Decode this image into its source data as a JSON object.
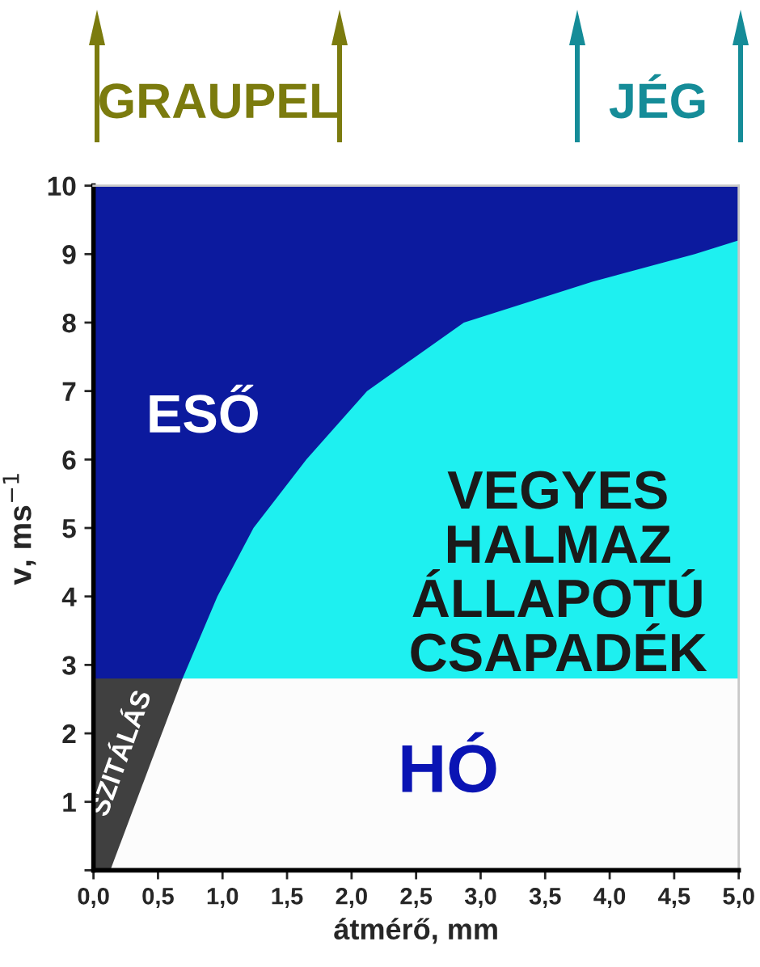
{
  "chart_data": {
    "type": "area",
    "xlabel": "átmérő, mm",
    "ylabel": "v, ms$^{−1}$",
    "annotations": [
      "GRAUPEL",
      "JÉG"
    ],
    "series": [
      {
        "name": "ESŐ",
        "color": "#0c1a9e",
        "x": [
          0,
          5.0
        ],
        "values": [
          10,
          10
        ]
      },
      {
        "name": "VEGYES\nHALMAZ\nÁLLAPOTÚ\nCSAPADÉK",
        "color": "#1ef0f0",
        "x": [
          0.69,
          0.96,
          1.24,
          1.65,
          2.12,
          2.87,
          3.87,
          4.66,
          5.0
        ],
        "values": [
          2.8,
          4,
          5,
          6,
          7,
          8,
          8.6,
          9,
          9.2
        ]
      },
      {
        "name": "SZITÁLÁS",
        "color": "#404040",
        "x": [
          0,
          0.69
        ],
        "values": [
          2.8,
          2.8
        ]
      },
      {
        "name": "HÓ",
        "color": "#fcfcfc",
        "x": [
          0.13,
          0.69,
          5.0
        ],
        "values": [
          0,
          2.8,
          2.8
        ]
      }
    ],
    "xlim": [
      0,
      5
    ],
    "ylim": [
      0,
      10
    ],
    "xticks": [
      {
        "value": 0,
        "label": "0,0"
      },
      {
        "value": 0.5,
        "label": "0,5"
      },
      {
        "value": 1,
        "label": "1,0"
      },
      {
        "value": 1.5,
        "label": "1,5"
      },
      {
        "value": 2,
        "label": "2,0"
      },
      {
        "value": 2.5,
        "label": "2,5"
      },
      {
        "value": 3,
        "label": "3,0"
      },
      {
        "value": 3.5,
        "label": "3,5"
      },
      {
        "value": 4,
        "label": "4,0"
      },
      {
        "value": 4.5,
        "label": "4,5"
      },
      {
        "value": 5,
        "label": "5,0"
      }
    ],
    "yticks": [
      {
        "value": 0,
        "label": null
      },
      1,
      2,
      3,
      4,
      5,
      6,
      7,
      8,
      9,
      10
    ],
    "legend": false
  }
}
